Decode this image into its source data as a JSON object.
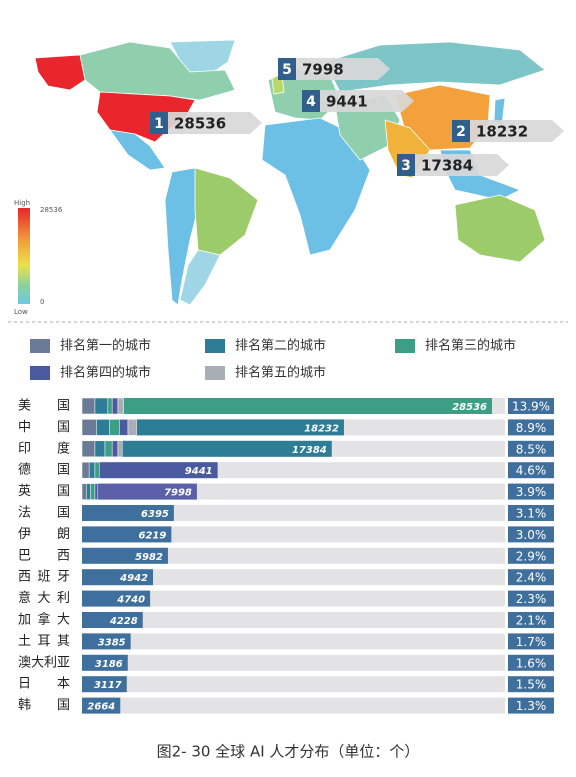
{
  "map": {
    "legend": {
      "high": "High",
      "low": "Low",
      "max": 28536,
      "min": 0
    },
    "callouts": [
      {
        "rank": 1,
        "value": 28536
      },
      {
        "rank": 2,
        "value": 18232
      },
      {
        "rank": 3,
        "value": 17384
      },
      {
        "rank": 4,
        "value": 9441
      },
      {
        "rank": 5,
        "value": 7998
      }
    ]
  },
  "chart_data": {
    "type": "bar",
    "orientation": "horizontal",
    "categories": [
      "美国",
      "中国",
      "印度",
      "德国",
      "英国",
      "法国",
      "伊朗",
      "巴西",
      "西班牙",
      "意大利",
      "加拿大",
      "土耳其",
      "澳大利亚",
      "日本",
      "韩国"
    ],
    "values": [
      28536,
      18232,
      17384,
      9441,
      7998,
      6395,
      6219,
      5982,
      4942,
      4740,
      4228,
      3385,
      3186,
      3117,
      2664
    ],
    "bar_colors": [
      "#3d9e86",
      "#2e7d96",
      "#2e7d96",
      "#4a5a9e",
      "#5a5fa8",
      "#3f6f9c",
      "#3f6f9c",
      "#3f6f9c",
      "#3f6f9c",
      "#3f6f9c",
      "#3f6f9c",
      "#3f6f9c",
      "#3f6f9c",
      "#3f6f9c",
      "#3f6f9c"
    ],
    "series": [
      {
        "name": "排名第一的城市",
        "color": "#6b7b95",
        "values": [
          900,
          1000,
          900,
          500,
          300,
          null,
          null,
          null,
          null,
          null,
          null,
          null,
          null,
          null,
          null
        ]
      },
      {
        "name": "排名第二的城市",
        "color": "#2e7d96",
        "values": [
          900,
          900,
          700,
          400,
          300,
          null,
          null,
          null,
          null,
          null,
          null,
          null,
          null,
          null,
          null
        ]
      },
      {
        "name": "排名第三的城市",
        "color": "#3d9e86",
        "values": [
          300,
          700,
          500,
          300,
          300,
          null,
          null,
          null,
          null,
          null,
          null,
          null,
          null,
          null,
          null
        ]
      },
      {
        "name": "排名第四的城市",
        "color": "#4a5a9e",
        "values": [
          400,
          600,
          400,
          null,
          200,
          null,
          null,
          null,
          null,
          null,
          null,
          null,
          null,
          null,
          null
        ]
      },
      {
        "name": "排名第五的城市",
        "color": "#a9adb5",
        "values": [
          400,
          600,
          300,
          null,
          null,
          null,
          null,
          null,
          null,
          null,
          null,
          null,
          null,
          null,
          null
        ]
      }
    ],
    "shares": [
      13.9,
      8.9,
      8.5,
      4.6,
      3.9,
      3.1,
      3.0,
      2.9,
      2.4,
      2.3,
      2.1,
      1.7,
      1.6,
      1.5,
      1.3
    ],
    "share_labels": [
      "13.9%",
      "8.9%",
      "8.5%",
      "4.6%",
      "3.9%",
      "3.1%",
      "3.0%",
      "2.9%",
      "2.4%",
      "2.3%",
      "2.1%",
      "1.7%",
      "1.6%",
      "1.5%",
      "1.3%"
    ]
  },
  "caption": "图2- 30 全球 AI 人才分布（单位：个）"
}
